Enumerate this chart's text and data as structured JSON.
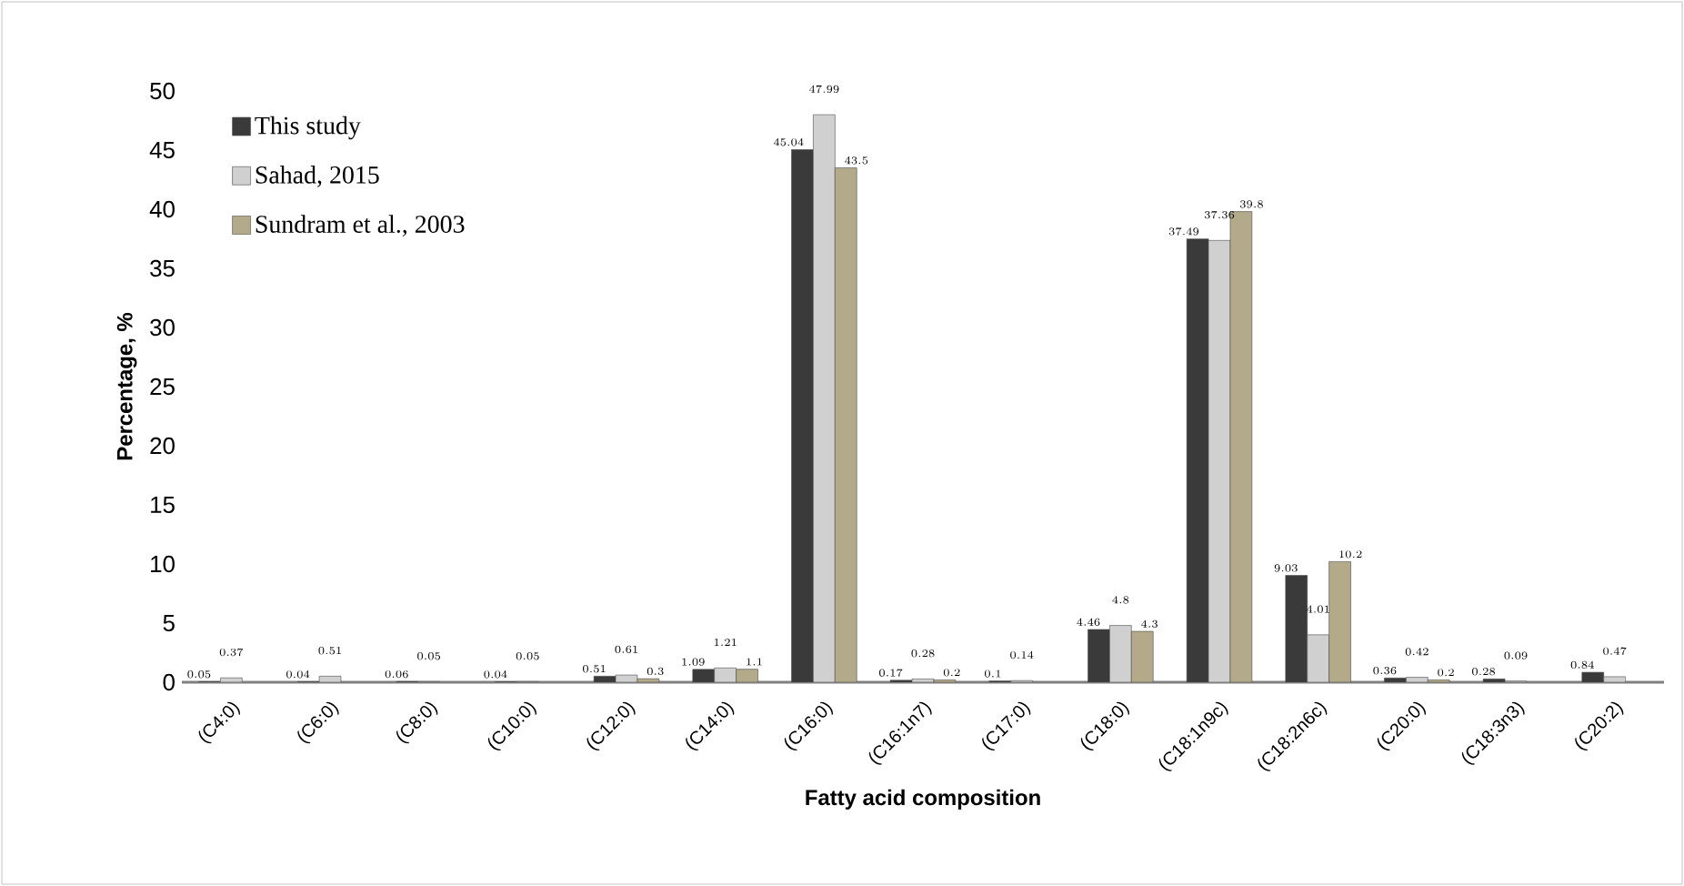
{
  "chart_data": {
    "type": "bar",
    "xlabel": "Fatty acid composition",
    "ylabel": "Percentage, %",
    "categories": [
      "(C4:0)",
      "(C6:0)",
      "(C8:0)",
      "(C10:0)",
      "(C12:0)",
      "(C14:0)",
      "(C16:0)",
      "(C16:1n7)",
      "(C17:0)",
      "(C18:0)",
      "(C18:1n9c)",
      "(C18:2n6c)",
      "(C20:0)",
      "(C18:3n3)",
      "(C20:2)"
    ],
    "series": [
      {
        "name": "This study",
        "color": "#3a3a3a",
        "values": [
          0.05,
          0.04,
          0.06,
          0.04,
          0.51,
          1.09,
          45.04,
          0.17,
          0.1,
          4.46,
          37.49,
          9.03,
          0.36,
          0.28,
          0.84
        ]
      },
      {
        "name": "Sahad, 2015",
        "color": "#d0d0d0",
        "values": [
          0.37,
          0.51,
          0.05,
          0.05,
          0.61,
          1.21,
          47.99,
          0.28,
          0.14,
          4.8,
          37.36,
          4.01,
          0.42,
          0.09,
          0.47
        ]
      },
      {
        "name": "Sundram et al., 2003",
        "color": "#b3aa8a",
        "values": [
          null,
          null,
          null,
          null,
          0.3,
          1.1,
          43.5,
          0.2,
          null,
          4.3,
          39.8,
          10.2,
          0.2,
          null,
          null
        ]
      }
    ],
    "ylim": [
      0,
      50
    ],
    "yticks": [
      0,
      5,
      10,
      15,
      20,
      25,
      30,
      35,
      40,
      45,
      50
    ],
    "data_labels": true,
    "legend": "top left",
    "grid": false
  }
}
